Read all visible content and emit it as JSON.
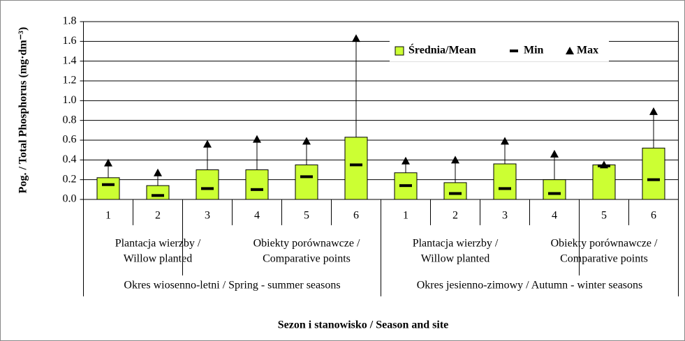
{
  "chart_data": {
    "type": "bar",
    "y_label": "Pog. / Total Phosphorus (mg·dm⁻³)",
    "x_label": "Sezon i stanowisko / Season and site",
    "categories": [
      "1",
      "2",
      "3",
      "4",
      "5",
      "6",
      "1",
      "2",
      "3",
      "4",
      "5",
      "6"
    ],
    "groups": [
      [
        "Plantacja wierzby /",
        "Willow planted"
      ],
      [
        "Obiekty porównawcze /",
        "Comparative points"
      ],
      [
        "Plantacja wierzby /",
        "Willow planted"
      ],
      [
        "Obiekty porównawcze /",
        "Comparative points"
      ]
    ],
    "seasons": [
      "Okres wiosenno-letni / Spring - summer seasons",
      "Okres jesienno-zimowy / Autumn - winter seasons"
    ],
    "series": [
      {
        "name": "Średnia/Mean",
        "color": "#ccff33",
        "values": [
          0.22,
          0.14,
          0.3,
          0.3,
          0.35,
          0.63,
          0.27,
          0.17,
          0.36,
          0.2,
          0.35,
          0.52
        ]
      },
      {
        "name": "Min",
        "color": "#000000",
        "values": [
          0.15,
          0.04,
          0.11,
          0.1,
          0.23,
          0.35,
          0.14,
          0.06,
          0.11,
          0.06,
          0.34,
          0.2
        ]
      },
      {
        "name": "Max",
        "color": "#000000",
        "values": [
          0.37,
          0.27,
          0.56,
          0.61,
          0.59,
          1.63,
          0.39,
          0.4,
          0.59,
          0.46,
          0.35,
          0.89
        ]
      }
    ],
    "ylim": [
      0,
      1.8
    ],
    "yticks": [
      {
        "value": 0,
        "label": "0.0"
      },
      0.2,
      0.4,
      0.6,
      0.8,
      {
        "value": 1,
        "label": "1.0"
      },
      1.2,
      1.4,
      1.6,
      1.8
    ],
    "grid": true,
    "legend": "top-right"
  }
}
